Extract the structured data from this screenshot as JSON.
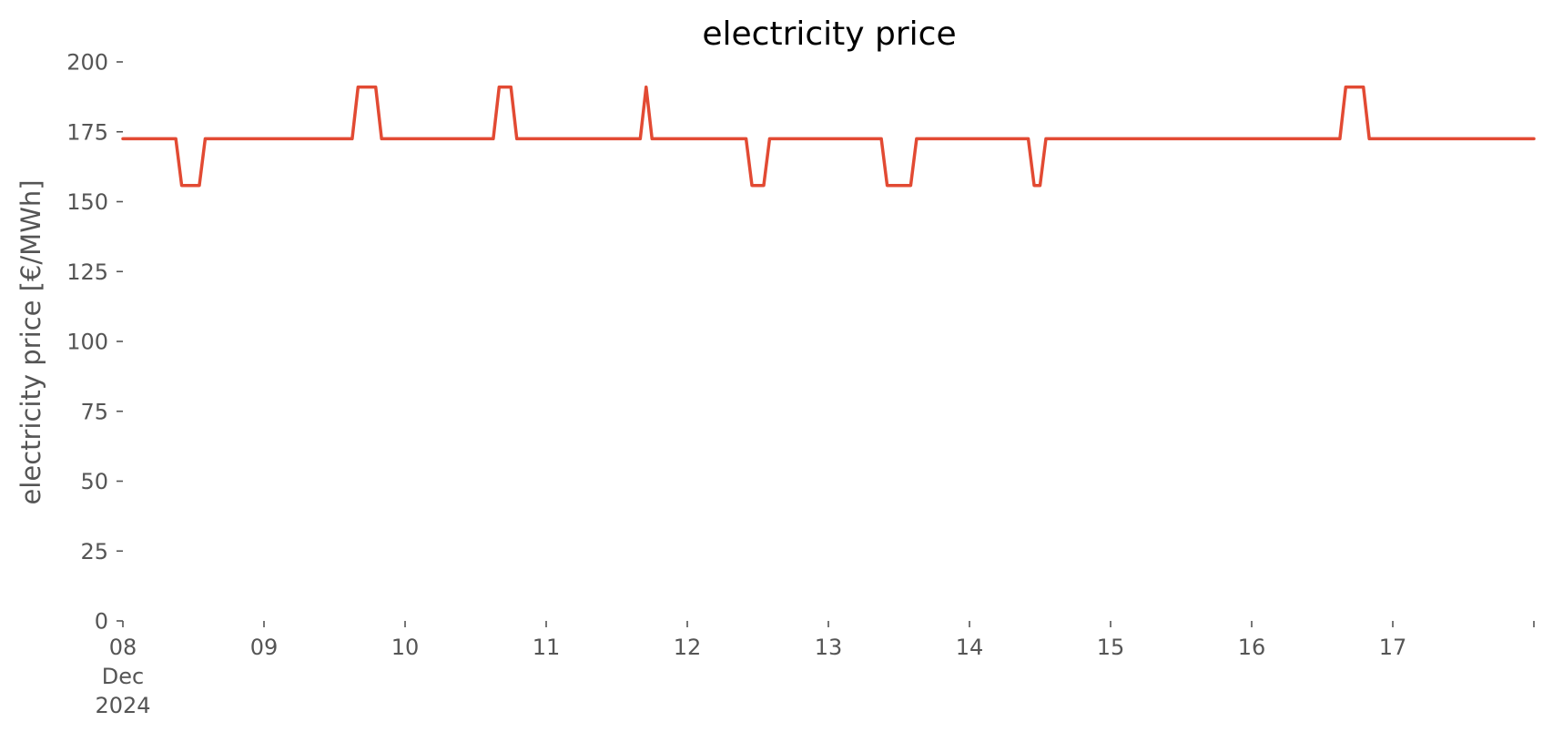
{
  "chart_data": {
    "type": "line",
    "title": "electricity price",
    "xlabel": "",
    "ylabel": "electricity price [€/MWh]",
    "xlim": [
      "2024-12-08 00:00",
      "2024-12-18 00:00"
    ],
    "ylim": [
      0,
      200
    ],
    "yticks": [
      0,
      25,
      50,
      75,
      100,
      125,
      150,
      175,
      200
    ],
    "xticks": [
      {
        "x": "2024-12-08",
        "label": [
          "08",
          "Dec",
          "2024"
        ]
      },
      {
        "x": "2024-12-09",
        "label": [
          "09"
        ]
      },
      {
        "x": "2024-12-10",
        "label": [
          "10"
        ]
      },
      {
        "x": "2024-12-11",
        "label": [
          "11"
        ]
      },
      {
        "x": "2024-12-12",
        "label": [
          "12"
        ]
      },
      {
        "x": "2024-12-13",
        "label": [
          "13"
        ]
      },
      {
        "x": "2024-12-14",
        "label": [
          "14"
        ]
      },
      {
        "x": "2024-12-15",
        "label": [
          "15"
        ]
      },
      {
        "x": "2024-12-16",
        "label": [
          "16"
        ]
      },
      {
        "x": "2024-12-17",
        "label": [
          "17"
        ]
      },
      {
        "x": "2024-12-18",
        "label": [
          ""
        ]
      }
    ],
    "grid": false,
    "legend": null,
    "series": [
      {
        "color": "#e24a33",
        "x": [
          "2024-12-08 00:00",
          "2024-12-08 09:00",
          "2024-12-08 10:00",
          "2024-12-08 13:00",
          "2024-12-08 14:00",
          "2024-12-09 15:00",
          "2024-12-09 16:00",
          "2024-12-09 19:00",
          "2024-12-09 20:00",
          "2024-12-10 15:00",
          "2024-12-10 16:00",
          "2024-12-10 18:00",
          "2024-12-10 19:00",
          "2024-12-11 16:00",
          "2024-12-11 17:00",
          "2024-12-11 18:00",
          "2024-12-12 10:00",
          "2024-12-12 11:00",
          "2024-12-12 13:00",
          "2024-12-12 14:00",
          "2024-12-13 09:00",
          "2024-12-13 10:00",
          "2024-12-13 14:00",
          "2024-12-13 15:00",
          "2024-12-14 10:00",
          "2024-12-14 11:00",
          "2024-12-14 12:00",
          "2024-12-14 13:00",
          "2024-12-16 15:00",
          "2024-12-16 16:00",
          "2024-12-16 19:00",
          "2024-12-16 20:00",
          "2024-12-18 00:00"
        ],
        "values": [
          172.5,
          172.5,
          155.8,
          155.8,
          172.5,
          172.5,
          191.0,
          191.0,
          172.5,
          172.5,
          191.0,
          191.0,
          172.5,
          172.5,
          191.0,
          172.5,
          172.5,
          155.8,
          155.8,
          172.5,
          172.5,
          155.8,
          155.8,
          172.5,
          172.5,
          155.8,
          155.8,
          172.5,
          172.5,
          191.0,
          191.0,
          172.5,
          172.5
        ]
      }
    ]
  }
}
